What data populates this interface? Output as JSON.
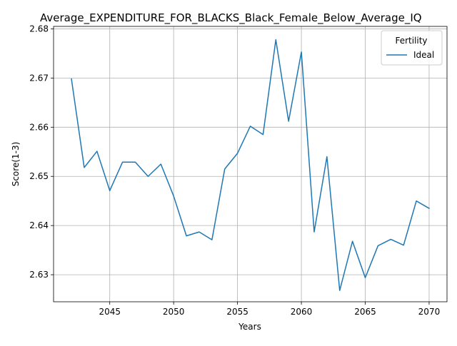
{
  "chart_data": {
    "type": "line",
    "title": "Average_EXPENDITURE_FOR_BLACKS_Black_Female_Below_Average_IQ",
    "xlabel": "Years",
    "ylabel": "Score(1-3)",
    "xlim": [
      2040.6,
      2071.4
    ],
    "ylim": [
      2.6245,
      2.6805
    ],
    "xticks": [
      2045,
      2050,
      2055,
      2060,
      2065,
      2070
    ],
    "yticks": [
      2.63,
      2.64,
      2.65,
      2.66,
      2.67,
      2.68
    ],
    "grid": true,
    "legend": {
      "title": "Fertility",
      "placement": "top-right"
    },
    "series": [
      {
        "name": "Ideal",
        "color": "#1f77b4",
        "x": [
          2042,
          2043,
          2044,
          2045,
          2046,
          2047,
          2048,
          2049,
          2050,
          2051,
          2052,
          2053,
          2054,
          2055,
          2056,
          2057,
          2058,
          2059,
          2060,
          2061,
          2062,
          2063,
          2064,
          2065,
          2066,
          2067,
          2068,
          2069,
          2070
        ],
        "y": [
          2.6698,
          2.6518,
          2.6551,
          2.6471,
          2.6529,
          2.6529,
          2.65,
          2.6525,
          2.646,
          2.6379,
          2.6387,
          2.6371,
          2.6515,
          2.6547,
          2.6602,
          2.6585,
          2.6778,
          2.6612,
          2.6753,
          2.6387,
          2.654,
          2.6268,
          2.6368,
          2.6294,
          2.6359,
          2.6372,
          2.636,
          2.645,
          2.6435
        ]
      }
    ]
  }
}
